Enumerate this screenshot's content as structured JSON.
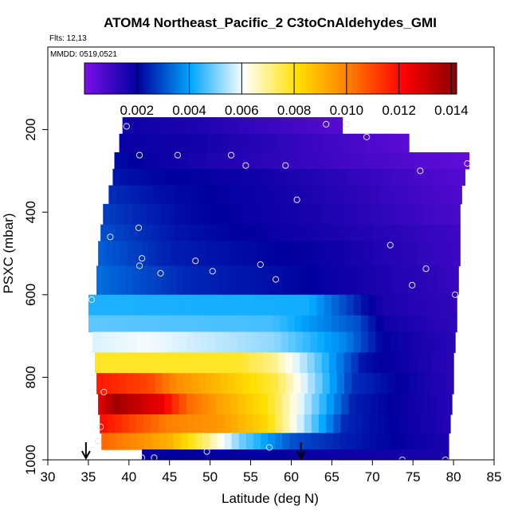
{
  "chart_data": {
    "type": "heatmap",
    "title": "ATOM4 Northeast_Pacific_2 C3toCnAldehydes_GMI",
    "flights_label": "Flts: 12,13",
    "mmdd_label": "MMDD: 0519,0521",
    "xlabel": "Latitude (deg N)",
    "ylabel": "PSXC (mbar)",
    "xlim": [
      30,
      85
    ],
    "ylim": [
      1000,
      0
    ],
    "x_ticks": [
      30,
      35,
      40,
      45,
      50,
      55,
      60,
      65,
      70,
      75,
      80,
      85
    ],
    "y_ticks": [
      200,
      400,
      600,
      800,
      1000
    ],
    "colorbar": {
      "range": [
        0.0,
        0.0142
      ],
      "ticks": [
        "0.002",
        "0.004",
        "0.006",
        "0.008",
        "0.010",
        "0.012",
        "0.014"
      ],
      "tick_values": [
        0.002,
        0.004,
        0.006,
        0.008,
        0.01,
        0.012,
        0.014
      ],
      "colors": [
        "#7a0fe8",
        "#00009e",
        "#00a6ff",
        "#ffffff",
        "#ffe000",
        "#ff7a00",
        "#ff0000",
        "#8a0000"
      ]
    },
    "rows": [
      {
        "p": [
          170,
          210
        ],
        "x": [
          39.2,
          66.3
        ],
        "stops": [
          [
            0,
            0.0018
          ],
          [
            0.3,
            0.0016
          ],
          [
            1,
            0.0006
          ]
        ]
      },
      {
        "p": [
          210,
          255
        ],
        "x": [
          38.8,
          74.5
        ],
        "stops": [
          [
            0,
            0.0019
          ],
          [
            0.3,
            0.0017
          ],
          [
            1,
            0.0005
          ]
        ]
      },
      {
        "p": [
          255,
          295
        ],
        "x": [
          38.2,
          81.9
        ],
        "stops": [
          [
            0,
            0.0022
          ],
          [
            0.06,
            0.002
          ],
          [
            0.3,
            0.0015
          ],
          [
            1,
            0.0004
          ]
        ]
      },
      {
        "p": [
          295,
          335
        ],
        "x": [
          38.0,
          81.4
        ],
        "stops": [
          [
            0,
            0.0023
          ],
          [
            0.1,
            0.0021
          ],
          [
            0.4,
            0.0018
          ],
          [
            1,
            0.0006
          ]
        ]
      },
      {
        "p": [
          335,
          380
        ],
        "x": [
          37.5,
          81.0
        ],
        "stops": [
          [
            0,
            0.0026
          ],
          [
            0.15,
            0.0022
          ],
          [
            0.5,
            0.0017
          ],
          [
            1,
            0.0007
          ]
        ]
      },
      {
        "p": [
          380,
          430
        ],
        "x": [
          36.8,
          80.8
        ],
        "stops": [
          [
            0,
            0.0028
          ],
          [
            0.2,
            0.0022
          ],
          [
            0.6,
            0.0016
          ],
          [
            1,
            0.0008
          ]
        ]
      },
      {
        "p": [
          430,
          470
        ],
        "x": [
          36.5,
          80.8
        ],
        "stops": [
          [
            0,
            0.003
          ],
          [
            0.2,
            0.0023
          ],
          [
            0.6,
            0.0017
          ],
          [
            1,
            0.001
          ]
        ]
      },
      {
        "p": [
          470,
          530
        ],
        "x": [
          36.2,
          80.8
        ],
        "stops": [
          [
            0,
            0.0032
          ],
          [
            0.2,
            0.0024
          ],
          [
            0.6,
            0.0019
          ],
          [
            1,
            0.001
          ]
        ]
      },
      {
        "p": [
          530,
          600
        ],
        "x": [
          36.0,
          80.6
        ],
        "stops": [
          [
            0,
            0.0034
          ],
          [
            0.25,
            0.0025
          ],
          [
            0.55,
            0.0021
          ],
          [
            1,
            0.0011
          ]
        ]
      },
      {
        "p": [
          600,
          650
        ],
        "x": [
          35.0,
          80.4
        ],
        "stops": [
          [
            0,
            0.0043
          ],
          [
            0.6,
            0.0042
          ],
          [
            0.75,
            0.0022
          ],
          [
            0.8,
            0.0016
          ],
          [
            1,
            0.0012
          ]
        ]
      },
      {
        "p": [
          650,
          690
        ],
        "x": [
          35.0,
          80.4
        ],
        "stops": [
          [
            0,
            0.0048
          ],
          [
            0.5,
            0.0046
          ],
          [
            0.73,
            0.003
          ],
          [
            0.8,
            0.0018
          ],
          [
            1,
            0.0012
          ]
        ]
      },
      {
        "p": [
          690,
          740
        ],
        "x": [
          35.5,
          80.2
        ],
        "stops": [
          [
            0,
            0.0058
          ],
          [
            0.15,
            0.006
          ],
          [
            0.5,
            0.0052
          ],
          [
            0.7,
            0.0036
          ],
          [
            0.8,
            0.002
          ],
          [
            1,
            0.0013
          ]
        ]
      },
      {
        "p": [
          740,
          790
        ],
        "x": [
          35.8,
          80.0
        ],
        "stops": [
          [
            0,
            0.0078
          ],
          [
            0.4,
            0.0078
          ],
          [
            0.5,
            0.007
          ],
          [
            0.62,
            0.0048
          ],
          [
            0.75,
            0.0022
          ],
          [
            1,
            0.0013
          ]
        ]
      },
      {
        "p": [
          790,
          840
        ],
        "x": [
          36.0,
          80.0
        ],
        "stops": [
          [
            0,
            0.0118
          ],
          [
            0.15,
            0.011
          ],
          [
            0.22,
            0.0098
          ],
          [
            0.35,
            0.0088
          ],
          [
            0.5,
            0.0076
          ],
          [
            0.62,
            0.005
          ],
          [
            0.72,
            0.0026
          ],
          [
            1,
            0.0013
          ]
        ]
      },
      {
        "p": [
          840,
          890
        ],
        "x": [
          36.2,
          79.8
        ],
        "stops": [
          [
            0,
            0.0126
          ],
          [
            0.05,
            0.0138
          ],
          [
            0.18,
            0.0125
          ],
          [
            0.25,
            0.0105
          ],
          [
            0.35,
            0.0093
          ],
          [
            0.48,
            0.008
          ],
          [
            0.62,
            0.0048
          ],
          [
            0.72,
            0.0024
          ],
          [
            1,
            0.0014
          ]
        ]
      },
      {
        "p": [
          890,
          935
        ],
        "x": [
          36.4,
          79.6
        ],
        "stops": [
          [
            0,
            0.012
          ],
          [
            0.08,
            0.0112
          ],
          [
            0.2,
            0.01
          ],
          [
            0.35,
            0.0095
          ],
          [
            0.48,
            0.0082
          ],
          [
            0.6,
            0.005
          ],
          [
            0.7,
            0.0025
          ],
          [
            1,
            0.0014
          ]
        ]
      },
      {
        "p": [
          935,
          975
        ],
        "x": [
          36.6,
          79.4
        ],
        "stops": [
          [
            0,
            0.0105
          ],
          [
            0.1,
            0.0098
          ],
          [
            0.2,
            0.009
          ],
          [
            0.3,
            0.0072
          ],
          [
            0.4,
            0.005
          ],
          [
            0.55,
            0.003
          ],
          [
            0.7,
            0.0024
          ],
          [
            1,
            0.0016
          ]
        ]
      },
      {
        "p": [
          975,
          1000
        ],
        "x": [
          41.6,
          79.4
        ],
        "stops": [
          [
            0,
            0.002
          ],
          [
            0.5,
            0.0019
          ],
          [
            1,
            0.0016
          ]
        ]
      }
    ],
    "points": [
      [
        39.7,
        192
      ],
      [
        64.3,
        187
      ],
      [
        66.8,
        187
      ],
      [
        69.3,
        218
      ],
      [
        41.3,
        262
      ],
      [
        46.0,
        262
      ],
      [
        52.6,
        262
      ],
      [
        54.4,
        287
      ],
      [
        59.3,
        287
      ],
      [
        75.9,
        300
      ],
      [
        81.7,
        282
      ],
      [
        60.7,
        370
      ],
      [
        37.7,
        460
      ],
      [
        41.2,
        438
      ],
      [
        72.2,
        480
      ],
      [
        41.6,
        512
      ],
      [
        41.3,
        530
      ],
      [
        43.9,
        548
      ],
      [
        48.2,
        518
      ],
      [
        50.3,
        543
      ],
      [
        56.2,
        527
      ],
      [
        58.1,
        563
      ],
      [
        76.6,
        537
      ],
      [
        74.9,
        577
      ],
      [
        80.2,
        600
      ],
      [
        35.4,
        612
      ],
      [
        36.9,
        836
      ],
      [
        36.5,
        920
      ],
      [
        36.2,
        955
      ],
      [
        41.6,
        995
      ],
      [
        43.1,
        995
      ],
      [
        49.6,
        980
      ],
      [
        57.3,
        970
      ],
      [
        73.7,
        1000
      ],
      [
        79.0,
        1000
      ]
    ],
    "arrows": [
      34.7,
      61.2
    ]
  }
}
